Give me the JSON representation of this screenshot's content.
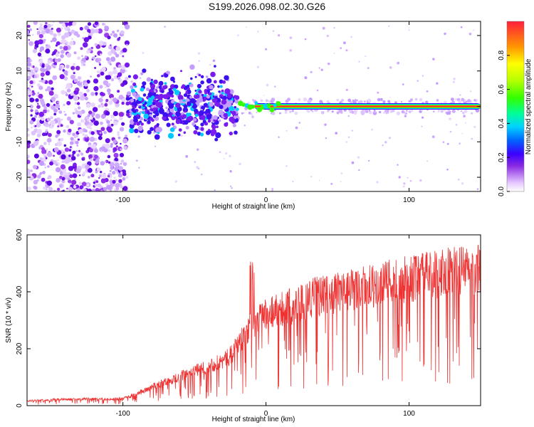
{
  "chart_data": [
    {
      "type": "heatmap",
      "title": "S199.2026.098.02.30.G26",
      "xlabel": "Height of straight line (km)",
      "ylabel": "Frequency (Hz)",
      "xlim": [
        -167,
        150
      ],
      "ylim": [
        -24,
        24
      ],
      "x_ticks": [
        -100,
        0,
        100
      ],
      "y_ticks": [
        20,
        10,
        0,
        -10,
        -20
      ],
      "colorbar": {
        "label": "Normalized spectral amplitude",
        "range": [
          0,
          1
        ],
        "ticks": [
          "0.0",
          "0.2",
          "0.4",
          "0.6",
          "0.8"
        ]
      },
      "features": {
        "scatter_region_x": [
          -167,
          -97
        ],
        "cluster_region_x": [
          -97,
          -20
        ],
        "band_region_x": [
          -20,
          150
        ],
        "band_frequency": 0
      }
    },
    {
      "type": "line",
      "xlabel": "Height of straight line (km)",
      "ylabel": "SNR (10 * v/v)",
      "xlim": [
        -167,
        150
      ],
      "ylim": [
        0,
        600
      ],
      "x_ticks": [
        -100,
        0,
        100
      ],
      "y_ticks": [
        0,
        200,
        400,
        600
      ],
      "color": "#ef3232",
      "x": [
        -167,
        -150,
        -130,
        -110,
        -100,
        -90,
        -80,
        -70,
        -60,
        -50,
        -40,
        -30,
        -25,
        -20,
        -15,
        -10,
        -5,
        0,
        5,
        10,
        20,
        30,
        40,
        50,
        60,
        70,
        80,
        90,
        100,
        110,
        120,
        130,
        140,
        150
      ],
      "y": [
        18,
        22,
        25,
        25,
        28,
        45,
        70,
        90,
        110,
        130,
        150,
        170,
        190,
        230,
        270,
        300,
        330,
        350,
        360,
        370,
        380,
        410,
        420,
        430,
        440,
        450,
        460,
        470,
        480,
        490,
        500,
        510,
        515,
        520
      ]
    }
  ]
}
